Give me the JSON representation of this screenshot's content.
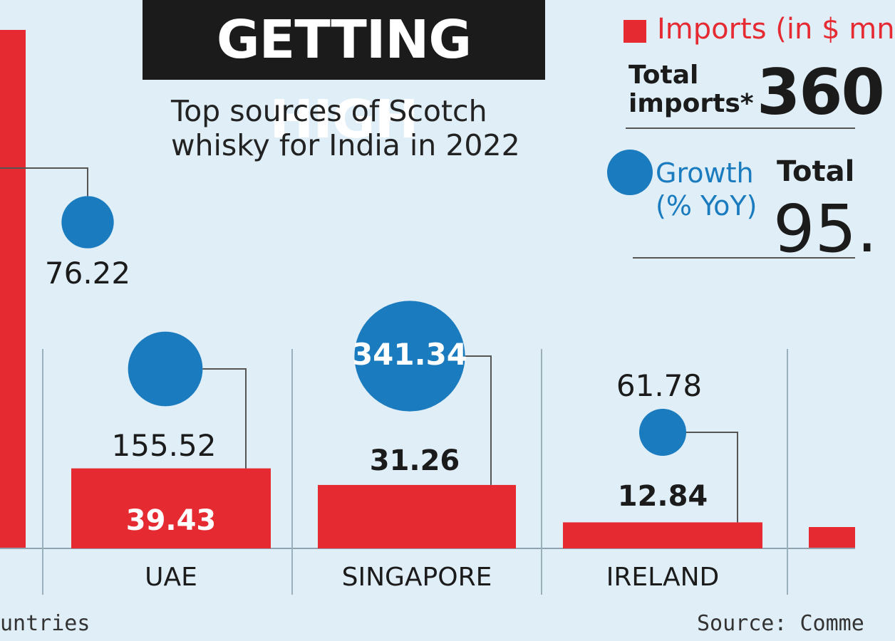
{
  "header": {
    "title": "GETTING HIGH",
    "subtitle_line1": "Top sources of Scotch",
    "subtitle_line2": "whisky for India in 2022"
  },
  "legend": {
    "imports_label": "Imports (in $ mn",
    "growth_label_line1": "Growth",
    "growth_label_line2": "(% YoY)",
    "total_imports_label_line1": "Total",
    "total_imports_label_line2": "imports*",
    "total_imports_value": "360",
    "total_growth_label": "Total",
    "total_growth_value": "95."
  },
  "footer": {
    "source": "Source: Comme",
    "footnote": "untries"
  },
  "colors": {
    "imports": "#e62a32",
    "growth": "#1a7bbf",
    "background": "#dfeef7",
    "title_bg": "#1b1b1b"
  },
  "chart_data": {
    "type": "bar",
    "categories": [
      "",
      "UAE",
      "SINGAPORE",
      "IRELAND"
    ],
    "series": [
      {
        "name": "Imports (in $ mn",
        "values": [
          null,
          39.43,
          31.26,
          12.84
        ]
      },
      {
        "name": "Growth (% YoY)",
        "values": [
          76.22,
          155.52,
          341.34,
          61.78
        ]
      }
    ],
    "labels": {
      "imports": [
        "",
        "39.43",
        "31.26",
        "12.84"
      ],
      "growth": [
        "76.22",
        "155.52",
        "341.34",
        "61.78"
      ]
    }
  }
}
